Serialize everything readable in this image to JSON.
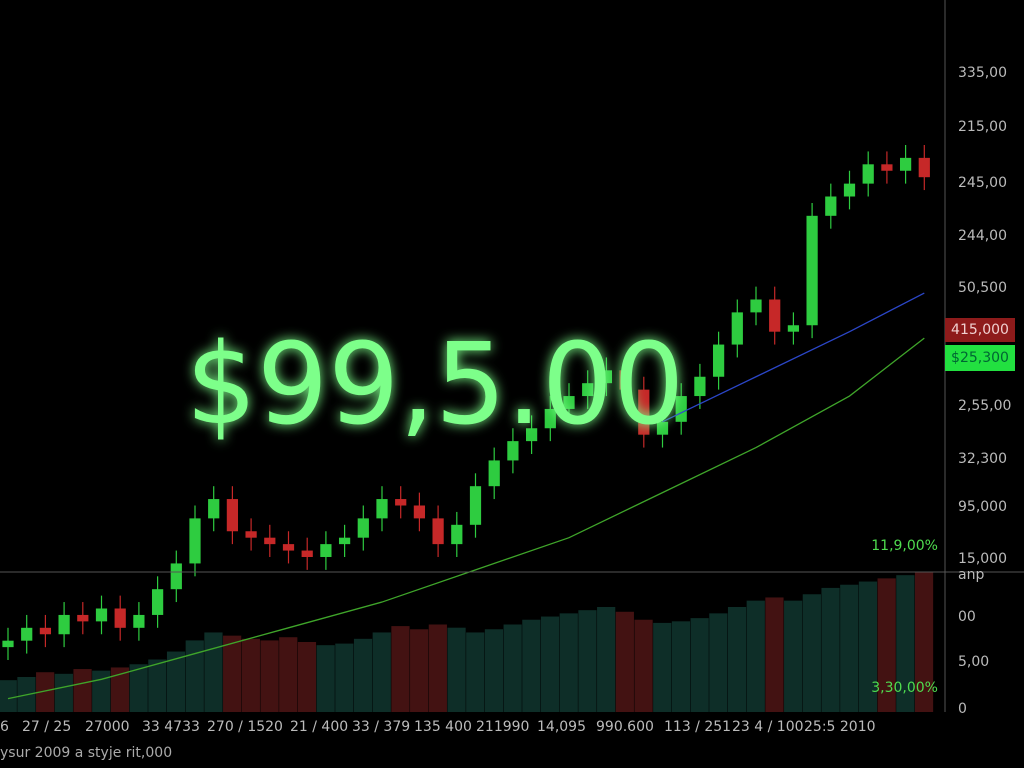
{
  "price_overlay": "$99,5.00",
  "right_axis_labels": [
    "335,00",
    "215,00",
    "245,00",
    "244,00",
    "50,500",
    "2,55,00",
    "32,300",
    "95,000",
    "15,000",
    "anp",
    "00",
    "5,00",
    "0"
  ],
  "badges": {
    "red": "415,000",
    "green": "$25,300"
  },
  "percent_labels": [
    "11,9,00%",
    "3,30,00%"
  ],
  "bottom_labels": [
    "6",
    "27 / 25",
    "27000",
    "33 4733",
    "270 / 1520",
    "21 / 400",
    "33 / 379",
    "135 400",
    "211990",
    "14,095",
    "990.600",
    "113 / 251",
    "23 4 / 100",
    "25:5 2010"
  ],
  "footer": "ysur 2009 a styje rit,000",
  "chart_data": {
    "type": "candlestick",
    "up_color": "#2ecc40",
    "down_color": "#c62828",
    "candles": [
      [
        13,
        16,
        11,
        14
      ],
      [
        14,
        18,
        12,
        16
      ],
      [
        16,
        18,
        13,
        15
      ],
      [
        15,
        20,
        13,
        18
      ],
      [
        18,
        20,
        15,
        17
      ],
      [
        17,
        21,
        15,
        19
      ],
      [
        19,
        21,
        14,
        16
      ],
      [
        16,
        20,
        14,
        18
      ],
      [
        18,
        24,
        16,
        22
      ],
      [
        22,
        28,
        20,
        26
      ],
      [
        26,
        35,
        24,
        33
      ],
      [
        33,
        38,
        31,
        36
      ],
      [
        36,
        38,
        29,
        31
      ],
      [
        31,
        33,
        28,
        30
      ],
      [
        30,
        32,
        27,
        29
      ],
      [
        29,
        31,
        26,
        28
      ],
      [
        28,
        30,
        25,
        27
      ],
      [
        27,
        31,
        25,
        29
      ],
      [
        29,
        32,
        27,
        30
      ],
      [
        30,
        35,
        28,
        33
      ],
      [
        33,
        38,
        31,
        36
      ],
      [
        36,
        38,
        33,
        35
      ],
      [
        35,
        37,
        31,
        33
      ],
      [
        33,
        35,
        27,
        29
      ],
      [
        29,
        34,
        27,
        32
      ],
      [
        32,
        40,
        30,
        38
      ],
      [
        38,
        44,
        36,
        42
      ],
      [
        42,
        47,
        40,
        45
      ],
      [
        45,
        49,
        43,
        47
      ],
      [
        47,
        52,
        45,
        50
      ],
      [
        50,
        54,
        48,
        52
      ],
      [
        52,
        56,
        50,
        54
      ],
      [
        54,
        58,
        52,
        56
      ],
      [
        56,
        58,
        51,
        53
      ],
      [
        53,
        55,
        44,
        46
      ],
      [
        46,
        50,
        44,
        48
      ],
      [
        48,
        54,
        46,
        52
      ],
      [
        52,
        57,
        50,
        55
      ],
      [
        55,
        62,
        53,
        60
      ],
      [
        60,
        67,
        58,
        65
      ],
      [
        65,
        69,
        63,
        67
      ],
      [
        67,
        69,
        60,
        62
      ],
      [
        62,
        65,
        60,
        63
      ],
      [
        63,
        82,
        61,
        80
      ],
      [
        80,
        85,
        78,
        83
      ],
      [
        83,
        87,
        81,
        85
      ],
      [
        85,
        90,
        83,
        88
      ],
      [
        88,
        90,
        85,
        87
      ],
      [
        87,
        91,
        85,
        89
      ],
      [
        89,
        91,
        84,
        86
      ]
    ],
    "volume": [
      20,
      22,
      25,
      24,
      27,
      26,
      28,
      30,
      33,
      38,
      45,
      50,
      48,
      46,
      45,
      47,
      44,
      42,
      43,
      46,
      50,
      54,
      52,
      55,
      53,
      50,
      52,
      55,
      58,
      60,
      62,
      64,
      66,
      63,
      58,
      56,
      57,
      59,
      62,
      66,
      70,
      72,
      70,
      74,
      78,
      80,
      82,
      84,
      86,
      88
    ],
    "ma_index": [
      0,
      5,
      10,
      15,
      20,
      25,
      30,
      35,
      40,
      45,
      49
    ],
    "ma_series": [
      {
        "color": "#3fa52a",
        "values": [
          5,
          8,
          12,
          16,
          20,
          25,
          30,
          37,
          44,
          52,
          61
        ]
      },
      {
        "color": "#2b46c8",
        "values": [
          null,
          null,
          null,
          null,
          null,
          null,
          null,
          48,
          55,
          62,
          68
        ]
      }
    ]
  }
}
